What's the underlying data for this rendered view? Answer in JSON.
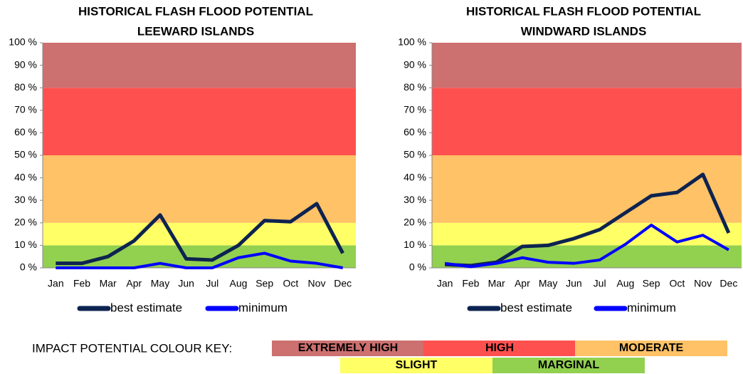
{
  "chart_data": [
    {
      "type": "line",
      "title": "HISTORICAL FLASH FLOOD POTENTIAL",
      "subtitle": "LEEWARD ISLANDS",
      "categories": [
        "Jan",
        "Feb",
        "Mar",
        "Apr",
        "May",
        "Jun",
        "Jul",
        "Aug",
        "Sep",
        "Oct",
        "Nov",
        "Dec"
      ],
      "series": [
        {
          "name": "best estimate",
          "color": "#0d2350",
          "values": [
            2,
            2,
            5,
            12,
            23.5,
            4,
            3.5,
            10,
            21,
            20.5,
            28.5,
            6.5
          ]
        },
        {
          "name": "minimum",
          "color": "#0000ff",
          "values": [
            0,
            0,
            0,
            0,
            2,
            0,
            0,
            4.5,
            6.5,
            3,
            2,
            0
          ]
        }
      ],
      "ylim": [
        0,
        100
      ],
      "yticks": [
        {
          "value": 0,
          "label": "0 %"
        },
        {
          "value": 10,
          "label": "10 %"
        },
        {
          "value": 20,
          "label": "20 %"
        },
        {
          "value": 30,
          "label": "30 %"
        },
        {
          "value": 40,
          "label": "40 %"
        },
        {
          "value": 50,
          "label": "50 %"
        },
        {
          "value": 60,
          "label": "60 %"
        },
        {
          "value": 70,
          "label": "70 %"
        },
        {
          "value": 80,
          "label": "80 %"
        },
        {
          "value": 90,
          "label": "90 %"
        },
        {
          "value": 100,
          "label": "100 %"
        }
      ],
      "bands": [
        {
          "from": 0,
          "to": 10,
          "color": "#92d050"
        },
        {
          "from": 10,
          "to": 20,
          "color": "#ffff66"
        },
        {
          "from": 20,
          "to": 50,
          "color": "#ffc266"
        },
        {
          "from": 50,
          "to": 80,
          "color": "#ff5050"
        },
        {
          "from": 80,
          "to": 100,
          "color": "#cd7070"
        }
      ]
    },
    {
      "type": "line",
      "title": "HISTORICAL FLASH FLOOD POTENTIAL",
      "subtitle": "WINDWARD ISLANDS",
      "categories": [
        "Jan",
        "Feb",
        "Mar",
        "Apr",
        "May",
        "Jun",
        "Jul",
        "Aug",
        "Sep",
        "Oct",
        "Nov",
        "Dec"
      ],
      "series": [
        {
          "name": "best estimate",
          "color": "#0d2350",
          "values": [
            1.5,
            1,
            2.5,
            9.5,
            10,
            13,
            17,
            24.5,
            32,
            33.5,
            41.5,
            15.5
          ]
        },
        {
          "name": "minimum",
          "color": "#0000ff",
          "values": [
            2,
            0.5,
            2,
            4.5,
            2.5,
            2,
            3.5,
            10.5,
            19,
            11.5,
            14.5,
            8
          ]
        }
      ],
      "ylim": [
        0,
        100
      ],
      "yticks": [
        {
          "value": 0,
          "label": "0 %"
        },
        {
          "value": 10,
          "label": "10 %"
        },
        {
          "value": 20,
          "label": "20 %"
        },
        {
          "value": 30,
          "label": "30 %"
        },
        {
          "value": 40,
          "label": "40 %"
        },
        {
          "value": 50,
          "label": "50 %"
        },
        {
          "value": 60,
          "label": "60 %"
        },
        {
          "value": 70,
          "label": "70 %"
        },
        {
          "value": 80,
          "label": "80 %"
        },
        {
          "value": 90,
          "label": "90 %"
        },
        {
          "value": 100,
          "label": "100 %"
        }
      ],
      "bands": [
        {
          "from": 0,
          "to": 10,
          "color": "#92d050"
        },
        {
          "from": 10,
          "to": 20,
          "color": "#ffff66"
        },
        {
          "from": 20,
          "to": 50,
          "color": "#ffc266"
        },
        {
          "from": 50,
          "to": 80,
          "color": "#ff5050"
        },
        {
          "from": 80,
          "to": 100,
          "color": "#cd7070"
        }
      ]
    }
  ],
  "colour_key": {
    "title": "IMPACT POTENTIAL COLOUR KEY:",
    "items": [
      {
        "label": "EXTREMELY HIGH",
        "color": "#cd7070"
      },
      {
        "label": "HIGH",
        "color": "#ff5050"
      },
      {
        "label": "MODERATE",
        "color": "#ffc266"
      },
      {
        "label": "SLIGHT",
        "color": "#ffff66"
      },
      {
        "label": "MARGINAL",
        "color": "#92d050"
      }
    ]
  }
}
